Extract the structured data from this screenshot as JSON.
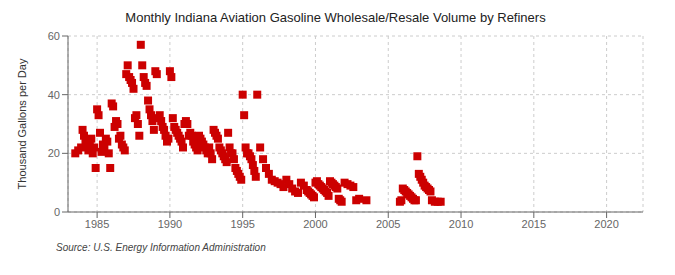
{
  "chart_data": {
    "type": "scatter",
    "title": "Monthly Indiana Aviation Gasoline Wholesale/Resale Volume by Refiners",
    "ylabel": "Thousand Gallons per Day",
    "annotation": "Source: U.S. Energy Information Administration",
    "color": "#cc0000",
    "marker": "square",
    "grid": true,
    "xlim": [
      1983.0,
      2022.5
    ],
    "ylim": [
      0,
      60
    ],
    "xticks": [
      1985,
      1990,
      1995,
      2000,
      2005,
      2010,
      2015,
      2020
    ],
    "yticks": [
      0,
      20,
      40,
      60
    ],
    "x": [
      1983.5,
      1983.7,
      1983.9,
      1984.0,
      1984.1,
      1984.2,
      1984.3,
      1984.4,
      1984.5,
      1984.6,
      1984.7,
      1984.8,
      1984.9,
      1985.0,
      1985.1,
      1985.2,
      1985.3,
      1985.4,
      1985.5,
      1985.6,
      1985.7,
      1985.8,
      1985.9,
      1986.0,
      1986.1,
      1986.2,
      1986.3,
      1986.4,
      1986.5,
      1986.6,
      1986.7,
      1986.8,
      1986.9,
      1987.0,
      1987.1,
      1987.2,
      1987.3,
      1987.4,
      1987.5,
      1987.6,
      1987.7,
      1987.8,
      1987.9,
      1988.0,
      1988.1,
      1988.2,
      1988.3,
      1988.4,
      1988.5,
      1988.6,
      1988.7,
      1988.8,
      1988.9,
      1989.0,
      1989.1,
      1989.2,
      1989.3,
      1989.4,
      1989.5,
      1989.6,
      1989.7,
      1989.8,
      1989.9,
      1990.0,
      1990.1,
      1990.2,
      1990.3,
      1990.4,
      1990.5,
      1990.6,
      1990.7,
      1990.8,
      1990.9,
      1991.0,
      1991.1,
      1991.2,
      1991.3,
      1991.4,
      1991.5,
      1991.6,
      1991.7,
      1991.8,
      1991.9,
      1992.0,
      1992.1,
      1992.2,
      1992.3,
      1992.4,
      1992.5,
      1992.6,
      1992.7,
      1992.8,
      1992.9,
      1993.0,
      1993.1,
      1993.2,
      1993.3,
      1993.4,
      1993.5,
      1993.6,
      1993.7,
      1993.8,
      1993.9,
      1994.0,
      1994.1,
      1994.2,
      1994.3,
      1994.4,
      1994.5,
      1994.6,
      1994.7,
      1994.8,
      1994.9,
      1995.0,
      1995.1,
      1995.2,
      1995.3,
      1995.4,
      1995.5,
      1995.6,
      1995.7,
      1995.8,
      1995.9,
      1996.0,
      1996.2,
      1996.4,
      1996.6,
      1996.8,
      1997.0,
      1997.2,
      1997.4,
      1997.6,
      1997.8,
      1998.0,
      1998.2,
      1998.4,
      1998.6,
      1998.8,
      1999.0,
      1999.2,
      1999.4,
      1999.5,
      1999.6,
      1999.7,
      1999.8,
      1999.9,
      2000.0,
      2000.1,
      2000.2,
      2000.3,
      2000.4,
      2000.5,
      2000.6,
      2000.7,
      2000.8,
      2000.9,
      2001.0,
      2001.1,
      2001.2,
      2001.3,
      2001.4,
      2001.5,
      2001.6,
      2001.7,
      2001.8,
      2002.0,
      2002.2,
      2002.4,
      2002.6,
      2002.8,
      2003.0,
      2003.5,
      2005.8,
      2005.9,
      2006.0,
      2006.1,
      2006.2,
      2006.3,
      2006.4,
      2006.5,
      2006.6,
      2006.7,
      2006.8,
      2006.9,
      2007.0,
      2007.1,
      2007.2,
      2007.3,
      2007.4,
      2007.5,
      2007.6,
      2007.7,
      2007.8,
      2007.9,
      2008.0,
      2008.2,
      2008.4,
      2008.6
    ],
    "values": [
      20.0,
      21.0,
      22.0,
      28.0,
      26.0,
      24.0,
      22.5,
      21.0,
      23.0,
      25.0,
      20.0,
      22.0,
      15.0,
      35.0,
      33.0,
      27.0,
      20.5,
      23.0,
      22.0,
      25.0,
      24.0,
      20.0,
      15.0,
      37.0,
      36.0,
      29.0,
      31.0,
      30.0,
      25.0,
      26.0,
      23.0,
      22.0,
      21.0,
      47.0,
      50.0,
      46.0,
      45.0,
      44.0,
      42.0,
      32.0,
      33.0,
      30.0,
      26.0,
      57.0,
      50.0,
      46.0,
      44.0,
      43.0,
      38.0,
      35.0,
      33.0,
      31.0,
      28.0,
      48.0,
      47.0,
      32.0,
      33.0,
      31.0,
      29.0,
      28.0,
      26.0,
      24.0,
      25.0,
      48.0,
      46.0,
      32.0,
      29.0,
      28.0,
      27.0,
      26.0,
      25.0,
      24.0,
      22.0,
      30.0,
      31.0,
      30.0,
      26.0,
      27.0,
      26.0,
      24.0,
      23.0,
      22.0,
      21.0,
      26.0,
      25.0,
      24.0,
      23.0,
      22.0,
      21.0,
      20.0,
      22.0,
      20.0,
      18.0,
      28.0,
      27.0,
      26.0,
      25.0,
      22.0,
      21.0,
      20.0,
      19.0,
      18.0,
      17.0,
      27.0,
      22.0,
      20.0,
      20.0,
      18.0,
      15.0,
      14.0,
      13.0,
      12.0,
      11.0,
      40.0,
      33.0,
      22.0,
      20.0,
      20.0,
      19.0,
      18.0,
      16.0,
      14.0,
      12.0,
      40.0,
      22.0,
      18.0,
      15.0,
      13.0,
      11.0,
      10.5,
      10.0,
      9.5,
      8.5,
      11.0,
      9.5,
      8.0,
      7.0,
      6.5,
      10.0,
      9.0,
      7.5,
      7.0,
      6.5,
      6.0,
      5.5,
      5.0,
      10.0,
      10.5,
      9.5,
      9.0,
      8.5,
      8.0,
      7.5,
      7.0,
      6.5,
      5.5,
      10.5,
      10.0,
      9.5,
      9.0,
      8.5,
      8.0,
      4.5,
      4.0,
      3.5,
      10.0,
      9.5,
      9.0,
      8.5,
      4.0,
      4.5,
      4.0,
      3.5,
      4.0,
      8.0,
      7.5,
      7.0,
      6.5,
      6.0,
      5.5,
      5.0,
      4.5,
      4.0,
      4.0,
      19.0,
      13.0,
      12.0,
      11.0,
      10.0,
      9.0,
      8.5,
      8.0,
      7.5,
      7.0,
      4.0,
      3.5,
      3.5,
      3.5
    ]
  }
}
